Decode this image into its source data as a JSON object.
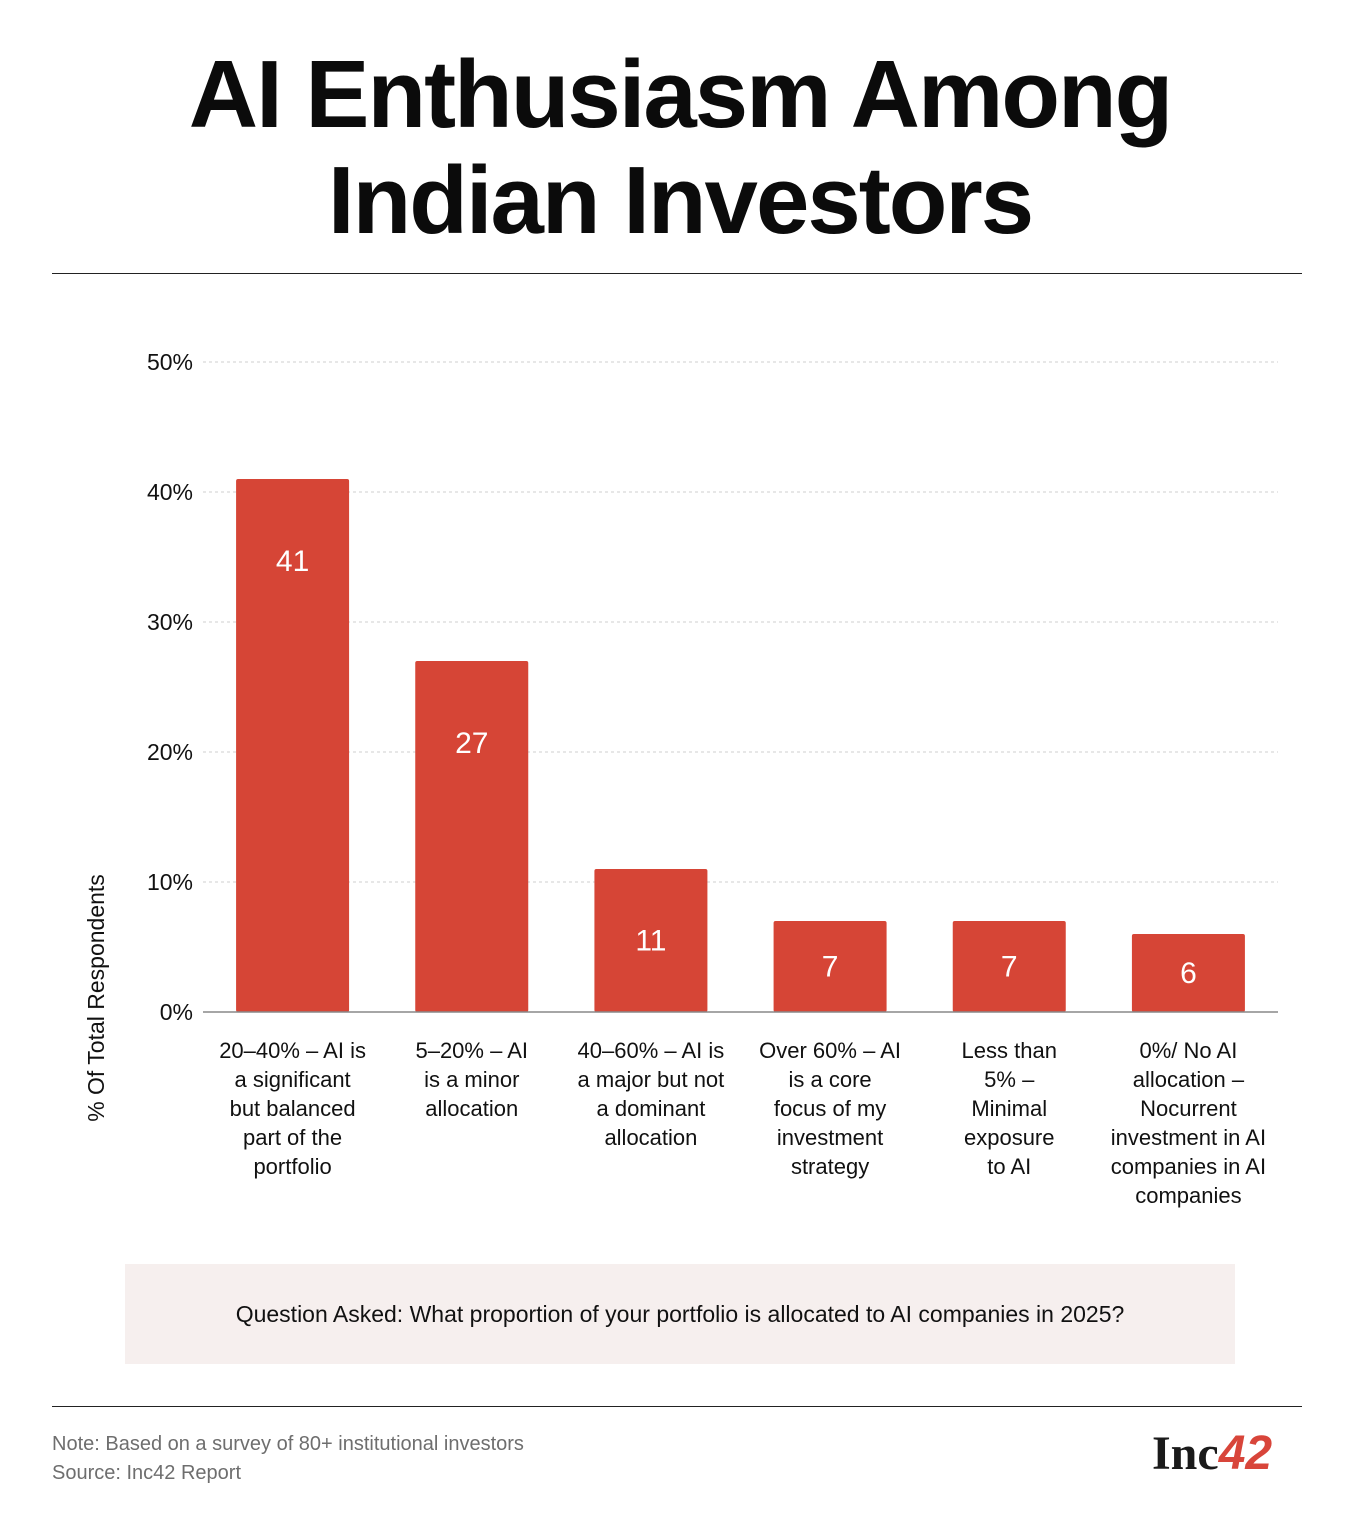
{
  "header": {
    "title_line1": "AI Enthusiasm Among",
    "title_line2": "Indian Investors"
  },
  "question": "Question Asked: What proportion of your portfolio is allocated to AI companies in 2025?",
  "footer": {
    "note": "Note: Based on a survey of 80+ institutional investors",
    "source": "Source: Inc42 Report",
    "logo_text": "Inc",
    "logo_number": "42"
  },
  "colors": {
    "bar": "#d64536",
    "grid": "#cfcfcf",
    "axis": "#888888",
    "accent": "#d8453a"
  },
  "chart_data": {
    "type": "bar",
    "title": "AI Enthusiasm Among Indian Investors",
    "xlabel": "",
    "ylabel": "% Of Total Respondents",
    "ylim": [
      0,
      50
    ],
    "yticks": [
      0,
      10,
      20,
      30,
      40,
      50
    ],
    "ytick_labels": [
      "0%",
      "10%",
      "20%",
      "30%",
      "40%",
      "50%"
    ],
    "grid": true,
    "categories": [
      [
        "20–40% – AI is",
        "a significant",
        "but balanced",
        "part of the",
        "portfolio"
      ],
      [
        "5–20% – AI",
        "is a minor",
        "allocation"
      ],
      [
        "40–60% – AI is",
        "a major but not",
        "a dominant",
        "allocation"
      ],
      [
        "Over 60% – AI",
        "is a core",
        "focus of my",
        "investment",
        "strategy"
      ],
      [
        "Less than",
        "5% –",
        "Minimal",
        "exposure",
        "to AI"
      ],
      [
        "0%/ No AI",
        "allocation –",
        "Nocurrent",
        "investment in AI",
        "companies in AI",
        "companies"
      ]
    ],
    "values": [
      41,
      27,
      11,
      7,
      7,
      6
    ],
    "data_labels": [
      "41",
      "27",
      "11",
      "7",
      "7",
      "6"
    ]
  }
}
